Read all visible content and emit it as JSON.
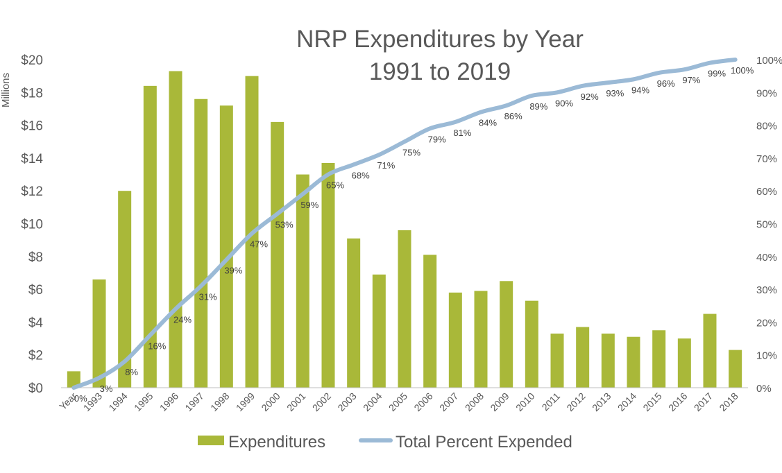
{
  "chart_data": {
    "type": "bar",
    "title": "NRP Expenditures by Year",
    "subtitle": "1991 to 2019",
    "ylabel": "Millions",
    "categories": [
      "Year",
      "1993",
      "1994",
      "1995",
      "1996",
      "1997",
      "1998",
      "1999",
      "2000",
      "2001",
      "2002",
      "2003",
      "2004",
      "2005",
      "2006",
      "2007",
      "2008",
      "2009",
      "2010",
      "2011",
      "2012",
      "2013",
      "2014",
      "2015",
      "2016",
      "2017",
      "2018"
    ],
    "series": [
      {
        "name": "Expenditures",
        "type": "bar",
        "axis": "left",
        "color": "#a9b839",
        "values": [
          1.0,
          6.6,
          12.0,
          18.4,
          19.3,
          17.6,
          17.2,
          19.0,
          16.2,
          13.0,
          13.7,
          9.1,
          6.9,
          9.6,
          8.1,
          5.8,
          5.9,
          6.5,
          5.3,
          3.3,
          3.7,
          3.3,
          3.1,
          3.5,
          3.0,
          4.5,
          2.3
        ]
      },
      {
        "name": "Total Percent Expended",
        "type": "line",
        "axis": "right",
        "color": "#9bbad6",
        "values": [
          0,
          3,
          8,
          16,
          24,
          31,
          39,
          47,
          53,
          59,
          65,
          68,
          71,
          75,
          79,
          81,
          84,
          86,
          89,
          90,
          92,
          93,
          94,
          96,
          97,
          99,
          100
        ],
        "labels": [
          "0%",
          "3%",
          "8%",
          "16%",
          "24%",
          "31%",
          "39%",
          "47%",
          "53%",
          "59%",
          "65%",
          "68%",
          "71%",
          "75%",
          "79%",
          "81%",
          "84%",
          "86%",
          "89%",
          "90%",
          "92%",
          "93%",
          "94%",
          "96%",
          "97%",
          "99%",
          "100%"
        ]
      }
    ],
    "y_left": {
      "range": [
        0,
        20
      ],
      "ticks": [
        "$0",
        "$2",
        "$4",
        "$6",
        "$8",
        "$10",
        "$12",
        "$14",
        "$16",
        "$18",
        "$20"
      ]
    },
    "y_right": {
      "range": [
        0,
        100
      ],
      "ticks": [
        "0%",
        "10%",
        "20%",
        "30%",
        "40%",
        "50%",
        "60%",
        "70%",
        "80%",
        "90%",
        "100%"
      ]
    },
    "grid": false,
    "legend": {
      "position": "bottom",
      "entries": [
        "Expenditures",
        "Total Percent Expended"
      ]
    }
  }
}
